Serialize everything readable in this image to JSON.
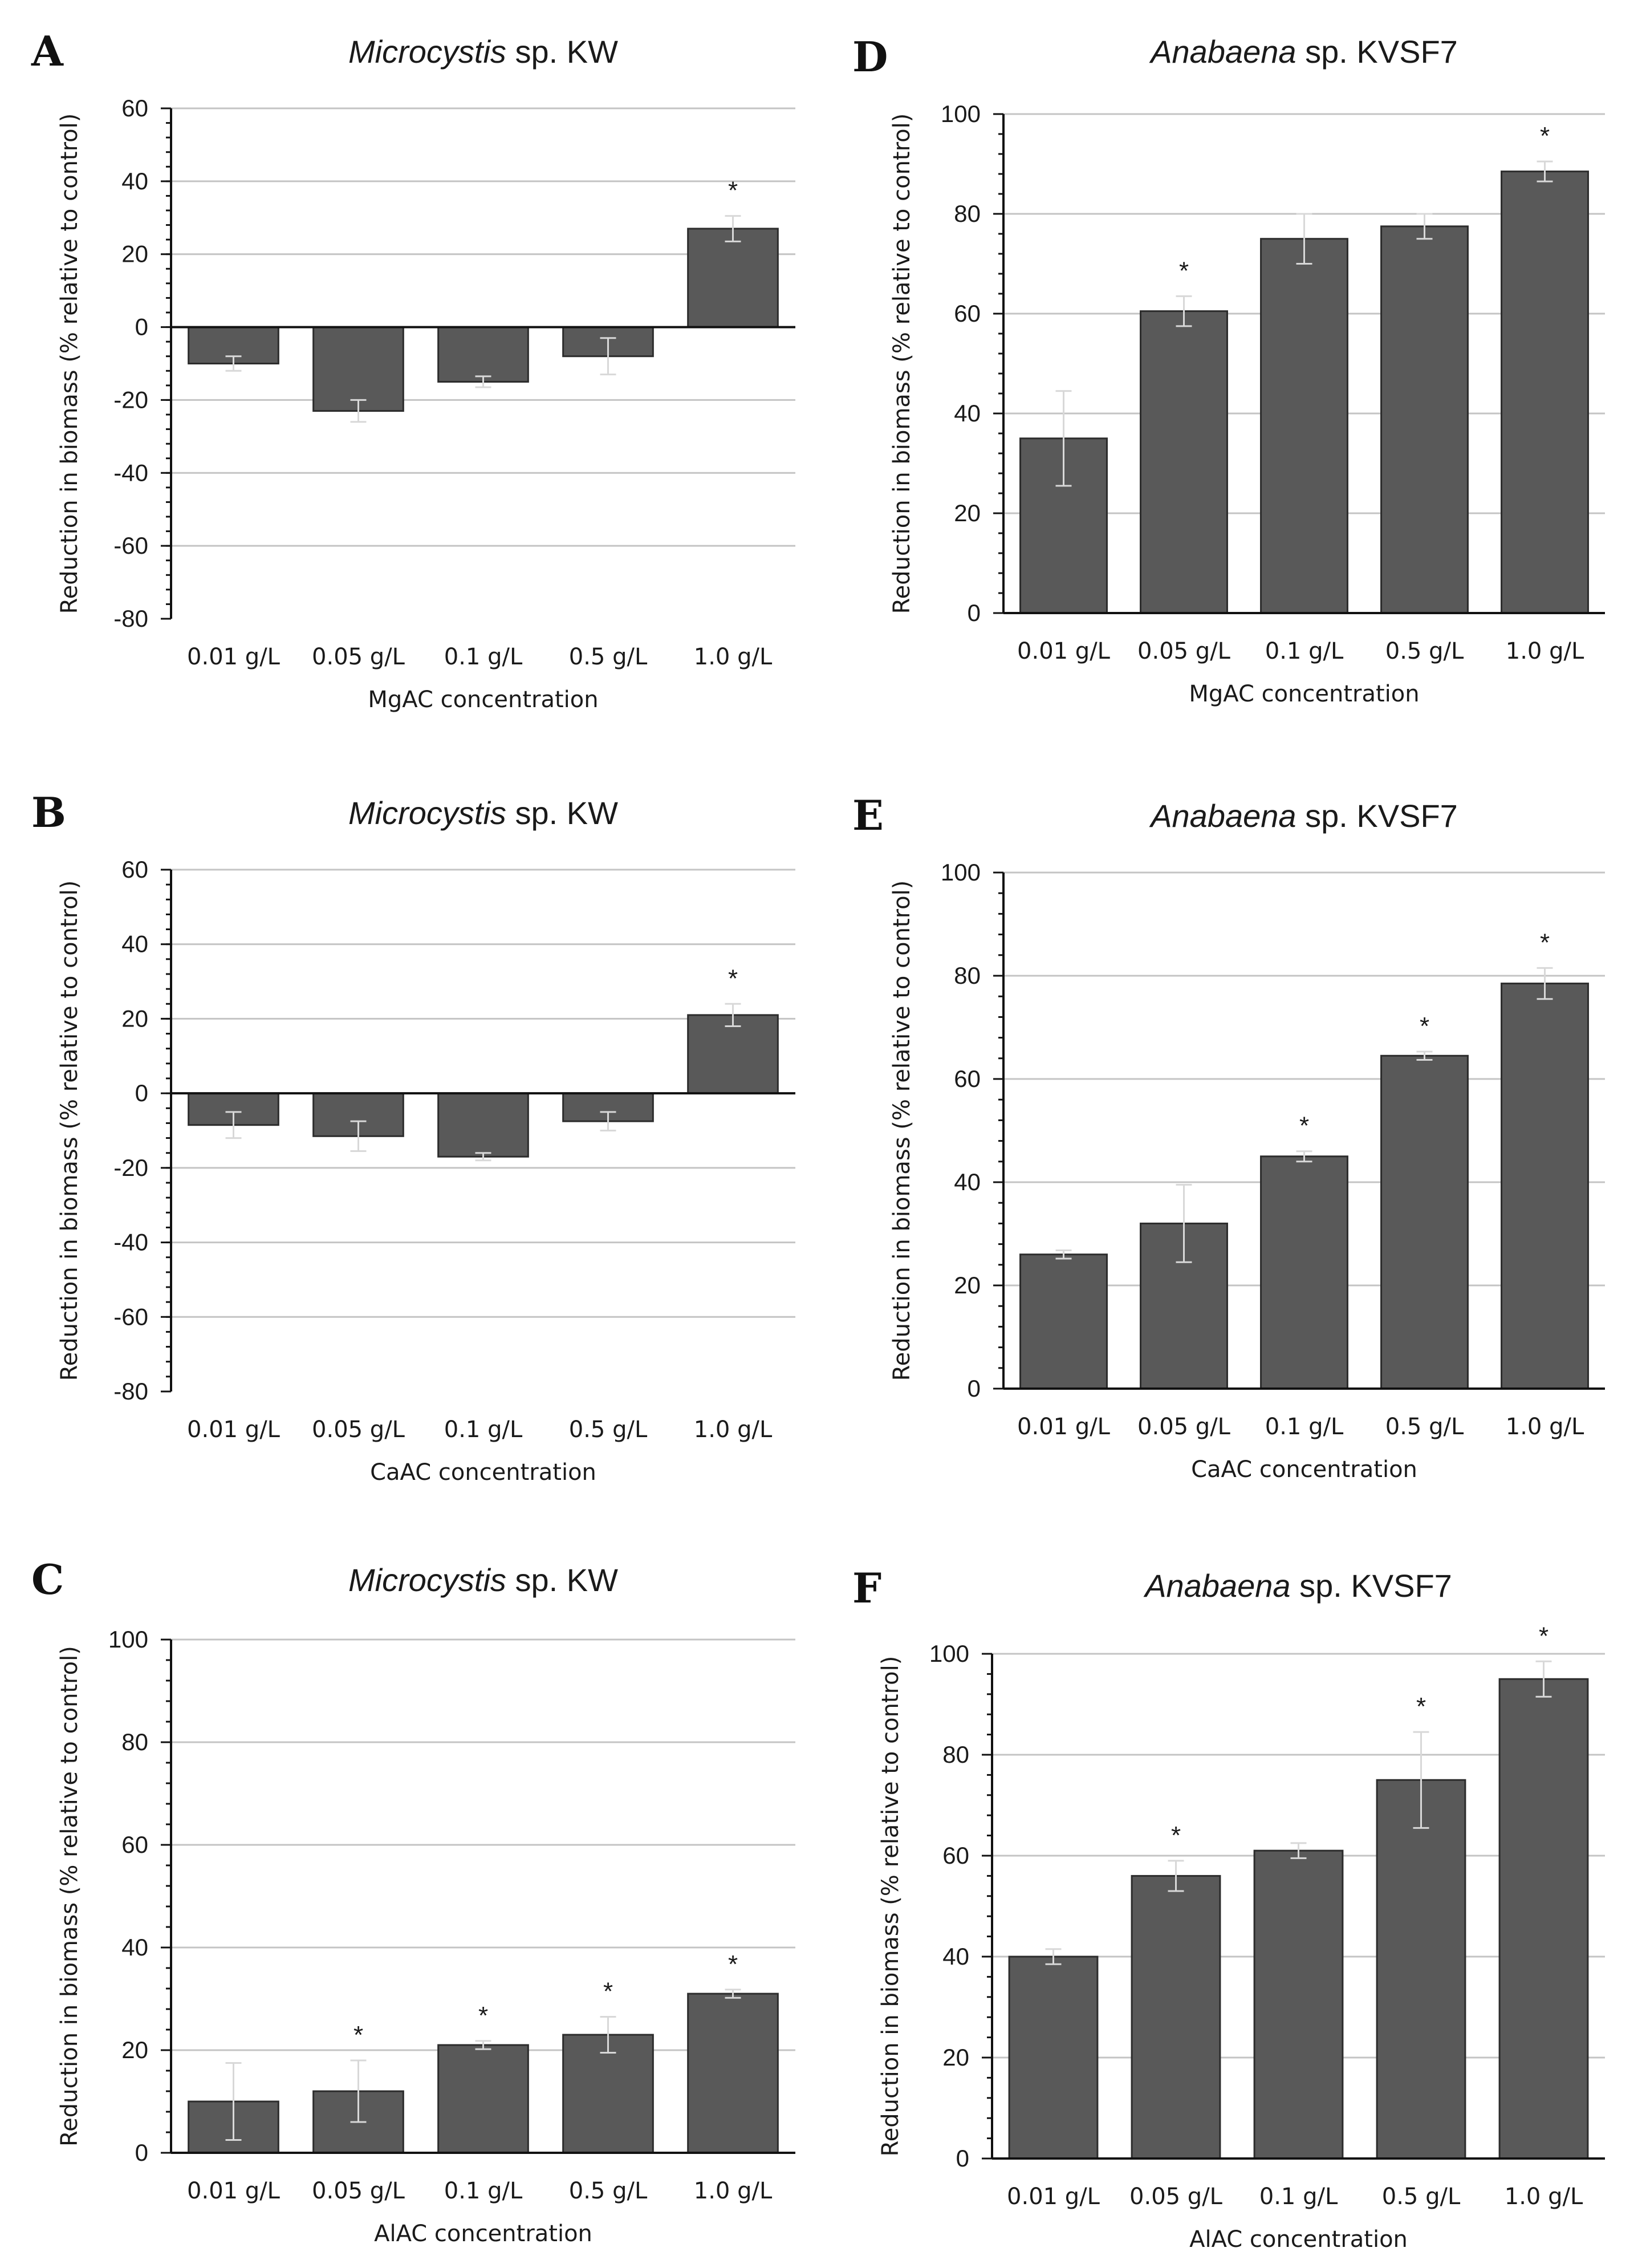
{
  "figure": "multi-panel bar charts",
  "chart_data": [
    {
      "id": "A",
      "type": "bar",
      "letter": "A",
      "title_italic": "Microcystis",
      "title_rest": " sp. KW",
      "categories": [
        "0.01 g/L",
        "0.05 g/L",
        "0.1 g/L",
        "0.5 g/L",
        "1.0 g/L"
      ],
      "values": [
        -10,
        -23,
        -15,
        -8,
        27
      ],
      "error": [
        2,
        3,
        1.5,
        5,
        3.5
      ],
      "significant": [
        false,
        false,
        false,
        false,
        true
      ],
      "star_label": "*",
      "xlabel": "MgAC concentration",
      "ylabel": "Reduction in biomass (% relative to control)",
      "ylim": [
        -80,
        60
      ],
      "yticks": [
        60,
        40,
        20,
        0,
        -20,
        -40,
        -60,
        -80
      ],
      "ytick_labels": [
        "60",
        "40",
        "20",
        "0",
        "-20",
        "-40",
        "-60",
        "-80"
      ],
      "grid": true
    },
    {
      "id": "B",
      "type": "bar",
      "letter": "B",
      "title_italic": "Microcystis",
      "title_rest": " sp. KW",
      "categories": [
        "0.01 g/L",
        "0.05 g/L",
        "0.1 g/L",
        "0.5 g/L",
        "1.0 g/L"
      ],
      "values": [
        -8.5,
        -11.5,
        -17,
        -7.5,
        21
      ],
      "error": [
        3.5,
        4,
        1,
        2.5,
        3
      ],
      "significant": [
        false,
        false,
        false,
        false,
        true
      ],
      "star_label": "*",
      "xlabel": "CaAC concentration",
      "ylabel": "Reduction in biomass (% relative to control)",
      "ylim": [
        -80,
        60
      ],
      "yticks": [
        60,
        40,
        20,
        0,
        -20,
        -40,
        -60,
        -80
      ],
      "ytick_labels": [
        "60",
        "40",
        "20",
        "0",
        "-20",
        "-40",
        "-60",
        "-80"
      ],
      "grid": true
    },
    {
      "id": "C",
      "type": "bar",
      "letter": "C",
      "title_italic": "Microcystis",
      "title_rest": " sp. KW",
      "categories": [
        "0.01 g/L",
        "0.05 g/L",
        "0.1 g/L",
        "0.5 g/L",
        "1.0 g/L"
      ],
      "values": [
        10,
        12,
        21,
        23,
        31
      ],
      "error": [
        7.5,
        6,
        0.8,
        3.5,
        0.8
      ],
      "significant": [
        false,
        true,
        true,
        true,
        true
      ],
      "star_label": "*",
      "xlabel": "AlAC concentration",
      "ylabel": "Reduction in biomass (% relative to control)",
      "ylim": [
        0,
        100
      ],
      "yticks": [
        100,
        80,
        60,
        40,
        20,
        0
      ],
      "ytick_labels": [
        "100",
        "80",
        "60",
        "40",
        "20",
        "0"
      ],
      "grid": true
    },
    {
      "id": "D",
      "type": "bar",
      "letter": "D",
      "title_italic": "Anabaena",
      "title_rest": " sp. KVSF7",
      "categories": [
        "0.01 g/L",
        "0.05 g/L",
        "0.1 g/L",
        "0.5 g/L",
        "1.0 g/L"
      ],
      "values": [
        35,
        60.5,
        75,
        77.5,
        88.5
      ],
      "error": [
        9.5,
        3,
        5,
        2.5,
        2
      ],
      "significant": [
        false,
        true,
        false,
        false,
        true
      ],
      "star_label": "*",
      "xlabel": "MgAC concentration",
      "ylabel": "Reduction in biomass (% relative to control)",
      "ylim": [
        0,
        100
      ],
      "yticks": [
        100,
        80,
        60,
        40,
        20,
        0
      ],
      "ytick_labels": [
        "100",
        "80",
        "60",
        "40",
        "20",
        "0"
      ],
      "grid": true
    },
    {
      "id": "E",
      "type": "bar",
      "letter": "E",
      "title_italic": "Anabaena",
      "title_rest": " sp. KVSF7",
      "categories": [
        "0.01 g/L",
        "0.05 g/L",
        "0.1 g/L",
        "0.5 g/L",
        "1.0 g/L"
      ],
      "values": [
        26,
        32,
        45,
        64.5,
        78.5
      ],
      "error": [
        0.8,
        7.5,
        1,
        0.8,
        3
      ],
      "significant": [
        false,
        false,
        true,
        true,
        true
      ],
      "star_label": "*",
      "xlabel": "CaAC concentration",
      "ylabel": "Reduction in biomass (% relative to control)",
      "ylim": [
        0,
        100
      ],
      "yticks": [
        100,
        80,
        60,
        40,
        20,
        0
      ],
      "ytick_labels": [
        "100",
        "80",
        "60",
        "40",
        "20",
        "0"
      ],
      "grid": true
    },
    {
      "id": "F",
      "type": "bar",
      "letter": "F",
      "title_italic": "Anabaena",
      "title_rest": " sp. KVSF7",
      "categories": [
        "0.01 g/L",
        "0.05 g/L",
        "0.1 g/L",
        "0.5 g/L",
        "1.0 g/L"
      ],
      "values": [
        40,
        56,
        61,
        75,
        95
      ],
      "error": [
        1.5,
        3,
        1.5,
        9.5,
        3.5
      ],
      "significant": [
        false,
        true,
        false,
        true,
        true
      ],
      "star_label": "*",
      "xlabel": "AlAC concentration",
      "ylabel": "Reduction in biomass (% relative to control)",
      "ylim": [
        0,
        100
      ],
      "yticks": [
        100,
        80,
        60,
        40,
        20,
        0
      ],
      "ytick_labels": [
        "100",
        "80",
        "60",
        "40",
        "20",
        "0"
      ],
      "grid": true
    }
  ]
}
